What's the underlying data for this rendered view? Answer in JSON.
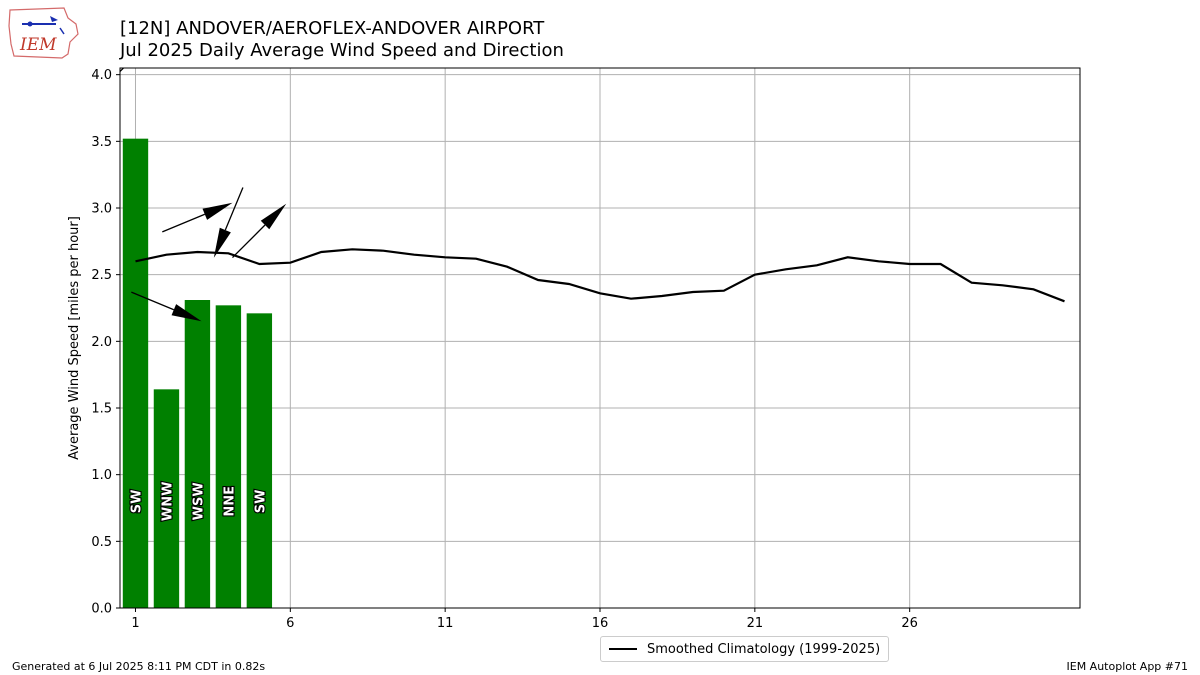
{
  "header": {
    "title": "[12N] ANDOVER/AEROFLEX-ANDOVER AIRPORT",
    "subtitle": "Jul 2025 Daily Average Wind Speed and Direction",
    "logo_text": "IEM"
  },
  "footer": {
    "generated": "Generated at 6 Jul 2025 8:11 PM CDT in 0.82s",
    "app": "IEM Autoplot App #71"
  },
  "colors": {
    "bar": "#008000",
    "climatology_line": "#000000",
    "grid": "#b0b0b0"
  },
  "chart_data": {
    "type": "bar",
    "title": "[12N] ANDOVER/AEROFLEX-ANDOVER AIRPORT",
    "subtitle": "Jul 2025 Daily Average Wind Speed and Direction",
    "ylabel": "Average Wind Speed [miles per hour]",
    "xlim": [
      0.5,
      31.5
    ],
    "ylim": [
      0,
      4.05
    ],
    "xticks": [
      1,
      6,
      11,
      16,
      21,
      26
    ],
    "yticks": [
      "0.0",
      "0.5",
      "1.0",
      "1.5",
      "2.0",
      "2.5",
      "3.0",
      "3.5",
      "4.0"
    ],
    "grid": true,
    "legend_position": "bottom-center",
    "bars": {
      "days": [
        1,
        2,
        3,
        4,
        5
      ],
      "values": [
        3.52,
        1.64,
        2.31,
        2.27,
        2.21
      ],
      "direction_labels": [
        "SW",
        "WNW",
        "WSW",
        "NNE",
        "SW"
      ],
      "direction_degrees": [
        225,
        292.5,
        247.5,
        22.5,
        225
      ]
    },
    "series": [
      {
        "name": "Smoothed Climatology (1999-2025)",
        "type": "line",
        "x": [
          1,
          2,
          3,
          4,
          5,
          6,
          7,
          8,
          9,
          10,
          11,
          12,
          13,
          14,
          15,
          16,
          17,
          18,
          19,
          20,
          21,
          22,
          23,
          24,
          25,
          26,
          27,
          28,
          29,
          30,
          31
        ],
        "values": [
          2.6,
          2.65,
          2.67,
          2.66,
          2.58,
          2.59,
          2.67,
          2.69,
          2.68,
          2.65,
          2.63,
          2.62,
          2.56,
          2.46,
          2.43,
          2.36,
          2.32,
          2.34,
          2.37,
          2.38,
          2.5,
          2.54,
          2.57,
          2.63,
          2.6,
          2.58,
          2.58,
          2.44,
          2.42,
          2.39,
          2.3
        ]
      }
    ]
  }
}
